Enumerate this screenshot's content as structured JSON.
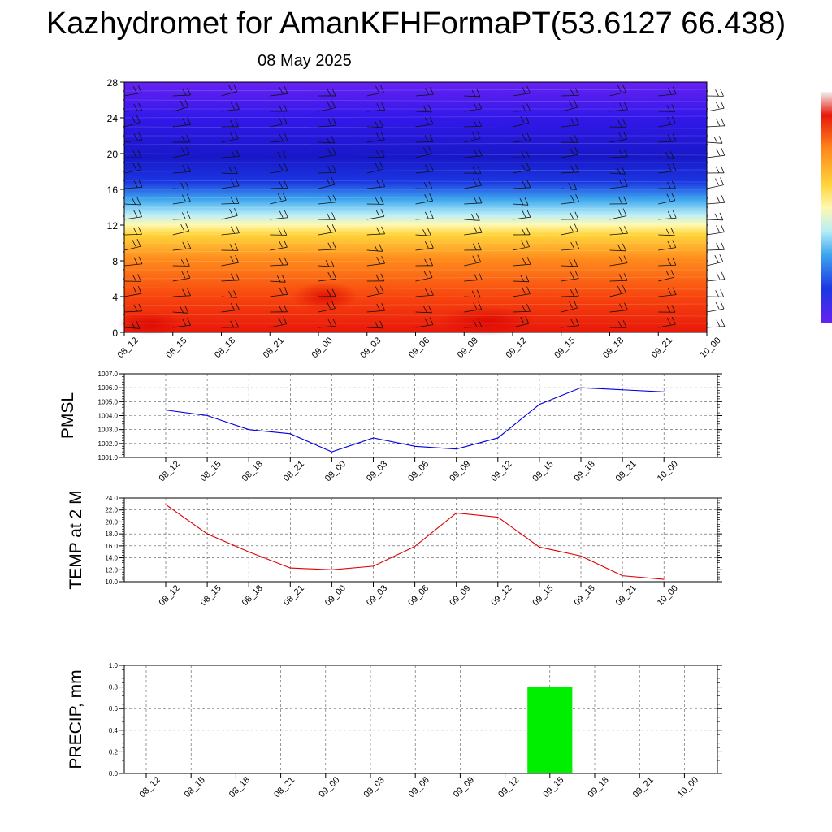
{
  "title": "Kazhydromet for AmanKFHFormaPT(53.6127 66.438)",
  "subtitle": "08 May 2025",
  "colors": {
    "pmsl_line": "#0000dd",
    "temp_line": "#dd0000",
    "precip_bar": "#00ee00"
  },
  "chart_data": [
    {
      "type": "heatmap",
      "title": "",
      "ylabel": "",
      "ylim": [
        0,
        28
      ],
      "yticks": [
        "0",
        "4",
        "8",
        "12",
        "16",
        "20",
        "24",
        "28"
      ],
      "x": [
        "08_12",
        "08_15",
        "08_18",
        "08_21",
        "09_00",
        "09_03",
        "09_06",
        "09_09",
        "09_12",
        "09_15",
        "09_18",
        "09_21",
        "10_00"
      ],
      "colorbar": "red-orange-yellow near surface, transitioning to cyan-blue-violet above 12",
      "wind_barbs": true,
      "grid": false
    },
    {
      "type": "line",
      "ylabel": "PMSL",
      "ylim": [
        1001.0,
        1007.0
      ],
      "yticks": [
        "1001.0",
        "1002.0",
        "1003.0",
        "1004.0",
        "1005.0",
        "1006.0",
        "1007.0"
      ],
      "x": [
        "08_12",
        "08_15",
        "08_18",
        "08_21",
        "09_00",
        "09_03",
        "09_06",
        "09_09",
        "09_12",
        "09_15",
        "09_18",
        "09_21",
        "10_00"
      ],
      "values": [
        1004.4,
        1004.0,
        1003.0,
        1002.7,
        1001.4,
        1002.4,
        1001.8,
        1001.6,
        1002.4,
        1004.8,
        1006.0,
        1005.85,
        1005.7
      ],
      "grid": true
    },
    {
      "type": "line",
      "ylabel": "TEMP at 2 M",
      "ylim": [
        10.0,
        24.0
      ],
      "yticks": [
        "10.0",
        "12.0",
        "14.0",
        "16.0",
        "18.0",
        "20.0",
        "22.0",
        "24.0"
      ],
      "x": [
        "08_12",
        "08_15",
        "08_18",
        "08_21",
        "09_00",
        "09_03",
        "09_06",
        "09_09",
        "09_12",
        "09_15",
        "09_18",
        "09_21",
        "10_00"
      ],
      "values": [
        22.9,
        18.0,
        15.0,
        12.3,
        12.0,
        12.6,
        15.9,
        21.5,
        20.8,
        15.8,
        14.3,
        11.0,
        10.4
      ],
      "grid": true
    },
    {
      "type": "bar",
      "ylabel": "PRECIP, mm",
      "ylim": [
        0.0,
        1.0
      ],
      "yticks": [
        "0.0",
        "0.2",
        "0.4",
        "0.6",
        "0.8",
        "1.0"
      ],
      "x": [
        "08_12",
        "08_15",
        "08_18",
        "08_21",
        "09_00",
        "09_03",
        "09_06",
        "09_09",
        "09_12",
        "09_15",
        "09_18",
        "09_21",
        "10_00"
      ],
      "values": [
        0,
        0,
        0,
        0,
        0,
        0,
        0,
        0,
        0,
        0.8,
        0,
        0,
        0
      ],
      "grid": true
    }
  ]
}
